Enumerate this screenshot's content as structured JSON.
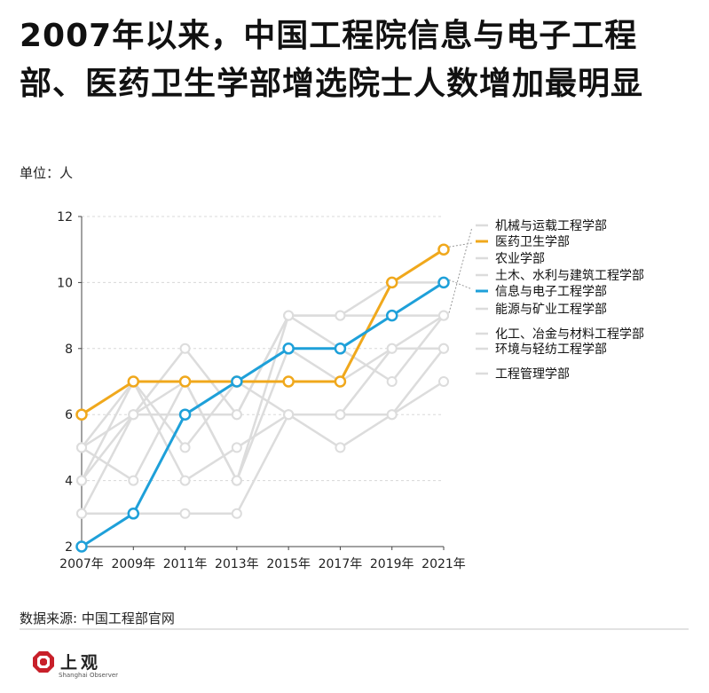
{
  "title": "2007年以来，中国工程院信息与电子工程部、医药卫生学部增选院士人数增加最明显",
  "unit_label": "单位：人",
  "source": "数据来源: 中国工程部官网",
  "logo": {
    "name": "上观",
    "sub": "Shanghai Observer"
  },
  "colors": {
    "highlight_orange": "#F0A81C",
    "highlight_blue": "#1EA0D9",
    "muted": "#DCDCDC",
    "grid": "#D8D8D8"
  },
  "chart_data": {
    "type": "line",
    "categories": [
      "2007年",
      "2009年",
      "2011年",
      "2013年",
      "2015年",
      "2017年",
      "2019年",
      "2021年"
    ],
    "ylim": [
      2,
      12
    ],
    "yticks": [
      2,
      4,
      6,
      8,
      10,
      12
    ],
    "grid": "horizontal dashed",
    "legend_position": "right",
    "series": [
      {
        "name": "机械与运载工程学部",
        "values": [
          5,
          6,
          8,
          6,
          9,
          9,
          9,
          9
        ],
        "highlight": false
      },
      {
        "name": "医药卫生学部",
        "values": [
          6,
          7,
          7,
          7,
          7,
          7,
          10,
          11
        ],
        "highlight": true,
        "color": "#F0A81C"
      },
      {
        "name": "农业学部",
        "values": [
          4,
          6,
          7,
          4,
          9,
          9,
          10,
          10
        ],
        "highlight": false
      },
      {
        "name": "土木、水利与建筑工程学部",
        "values": [
          3,
          6,
          6,
          6,
          9,
          8,
          7,
          9
        ],
        "highlight": false
      },
      {
        "name": "信息与电子工程学部",
        "values": [
          2,
          3,
          6,
          7,
          8,
          8,
          9,
          10
        ],
        "highlight": true,
        "color": "#1EA0D9"
      },
      {
        "name": "能源与矿业工程学部",
        "values": [
          4,
          7,
          4,
          5,
          6,
          6,
          8,
          9
        ],
        "highlight": false
      },
      {
        "name": "化工、冶金与材料工程学部",
        "values": [
          5,
          4,
          7,
          4,
          8,
          7,
          8,
          8
        ],
        "highlight": false
      },
      {
        "name": "环境与轻纺工程学部",
        "values": [
          3,
          3,
          3,
          3,
          6,
          5,
          6,
          8
        ],
        "highlight": false
      },
      {
        "name": "工程管理学部",
        "values": [
          5,
          7,
          5,
          7,
          6,
          6,
          6,
          7
        ],
        "highlight": false
      }
    ]
  }
}
